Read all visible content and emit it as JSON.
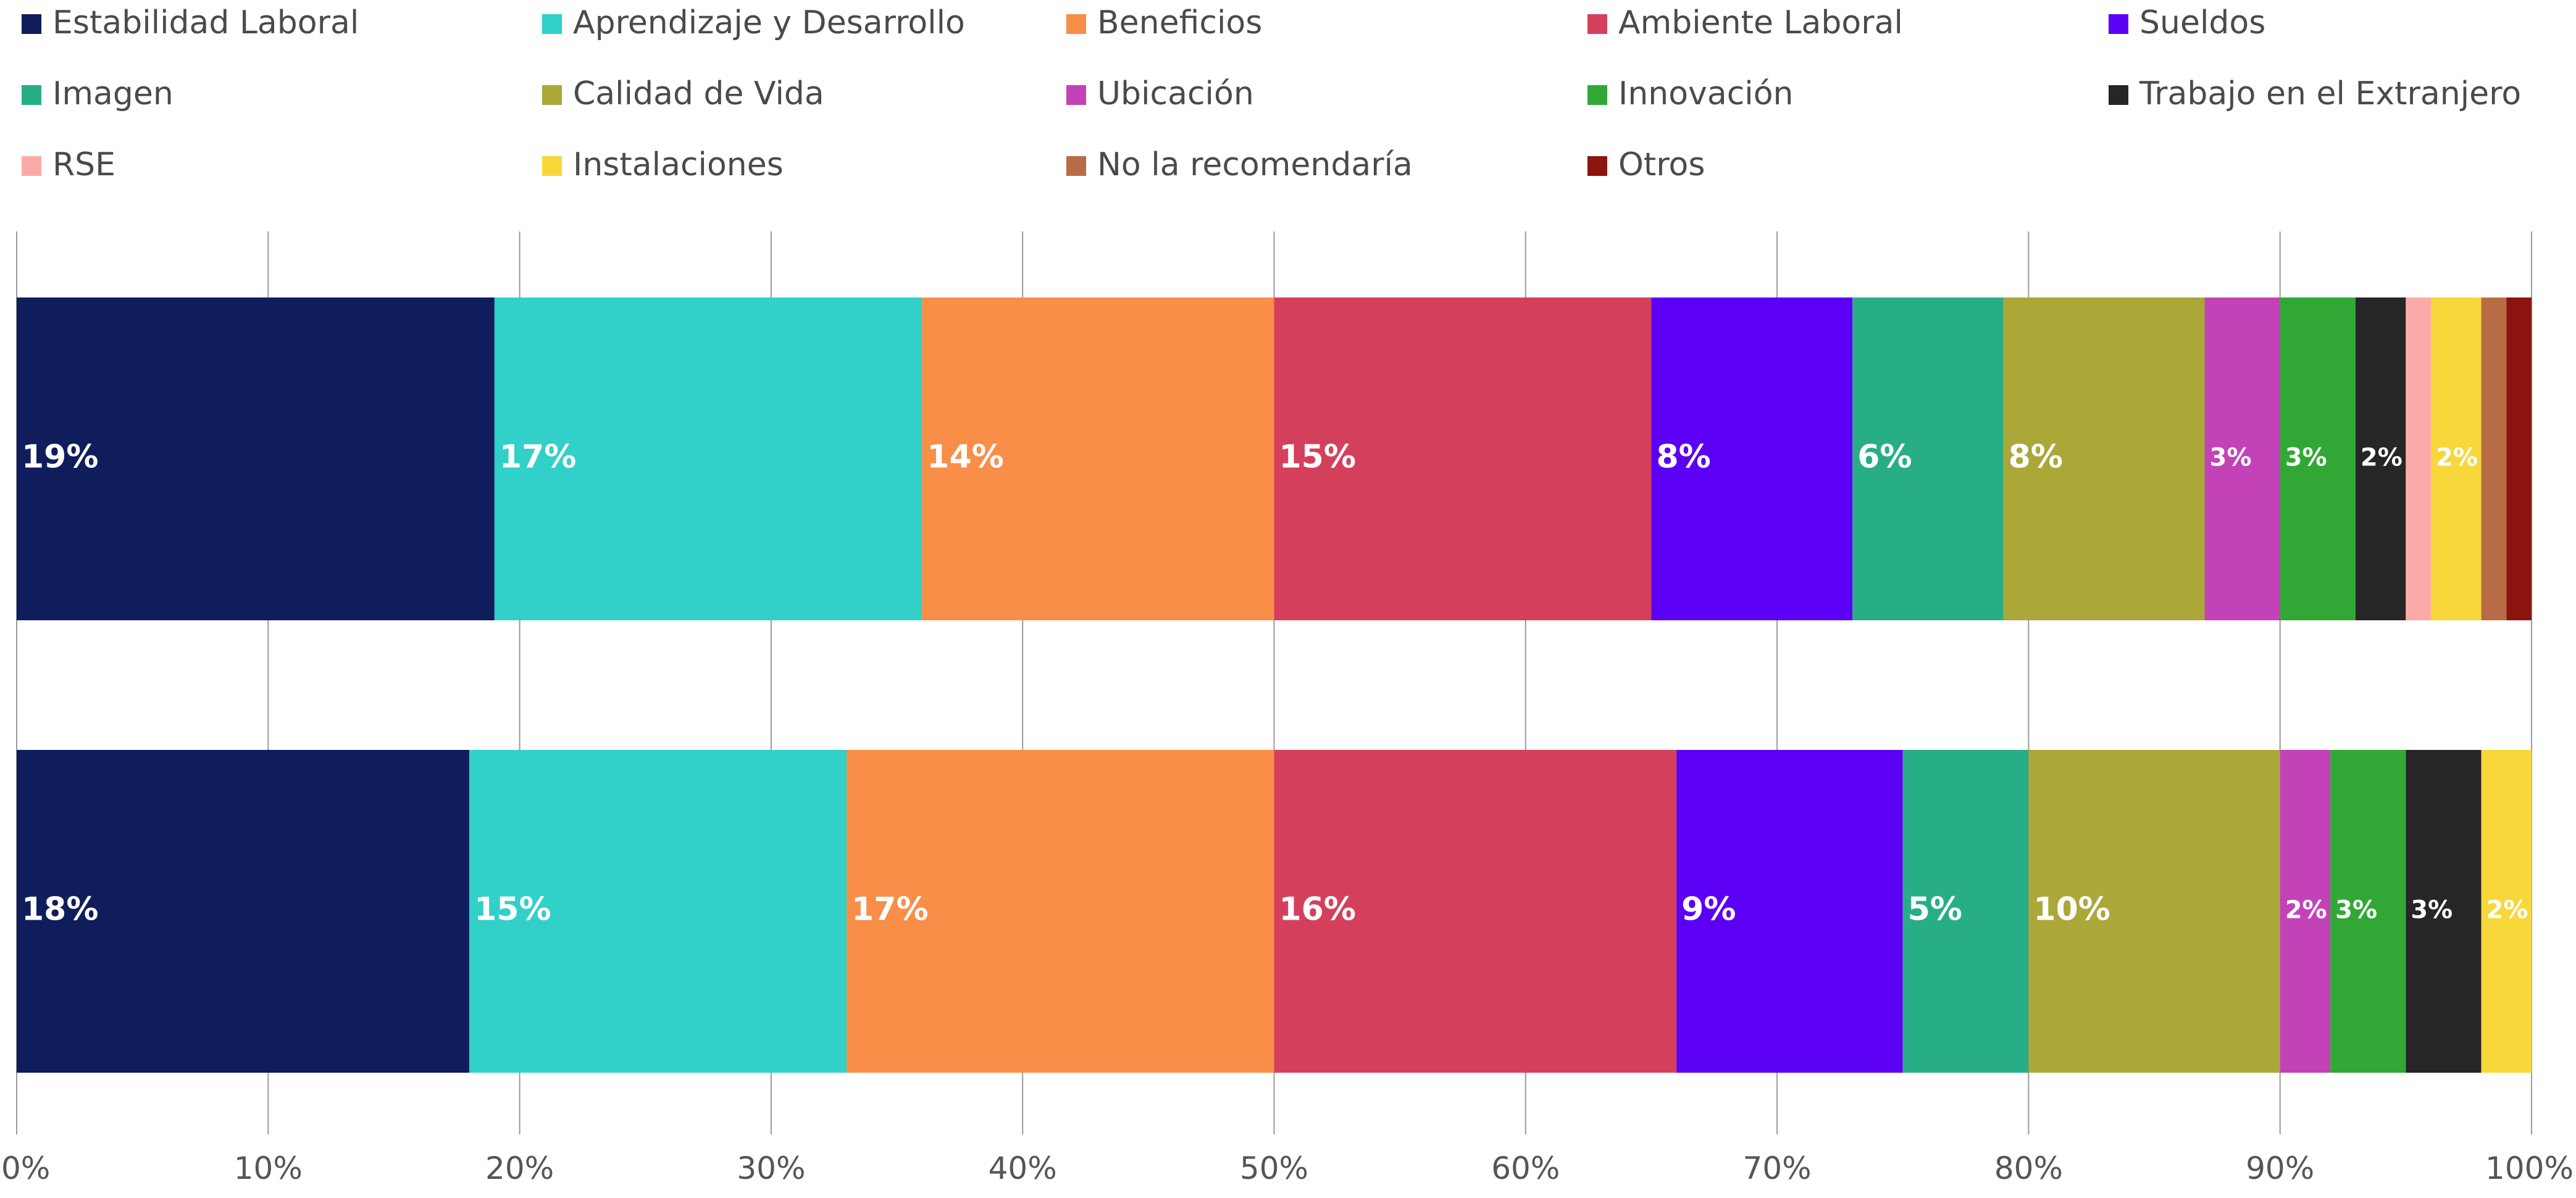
{
  "chart_data": {
    "type": "bar",
    "orientation": "horizontal",
    "stacked": true,
    "percent": true,
    "xlim": [
      0,
      100
    ],
    "xticks": [
      "0%",
      "10%",
      "20%",
      "30%",
      "40%",
      "50%",
      "60%",
      "70%",
      "80%",
      "90%",
      "100%"
    ],
    "grid": "vertical",
    "legend_position": "top",
    "bars": 2,
    "series": [
      {
        "name": "Estabilidad Laboral",
        "color": "#0f1d5c",
        "values": [
          19,
          18
        ],
        "labels": [
          "19%",
          "18%"
        ]
      },
      {
        "name": "Aprendizaje y Desarrollo",
        "color": "#31d0c8",
        "values": [
          17,
          15
        ],
        "labels": [
          "17%",
          "15%"
        ]
      },
      {
        "name": "Beneficios",
        "color": "#f88e48",
        "values": [
          14,
          17
        ],
        "labels": [
          "14%",
          "17%"
        ]
      },
      {
        "name": "Ambiente Laboral",
        "color": "#d4405c",
        "values": [
          15,
          16
        ],
        "labels": [
          "15%",
          "16%"
        ]
      },
      {
        "name": "Sueldos",
        "color": "#5b00f5",
        "values": [
          8,
          9
        ],
        "labels": [
          "8%",
          "9%"
        ]
      },
      {
        "name": "Imagen",
        "color": "#28ae86",
        "values": [
          6,
          5
        ],
        "labels": [
          "6%",
          "5%"
        ]
      },
      {
        "name": "Calidad de Vida",
        "color": "#aba739",
        "values": [
          8,
          10
        ],
        "labels": [
          "8%",
          "10%"
        ]
      },
      {
        "name": "Ubicación",
        "color": "#c442b8",
        "values": [
          3,
          2
        ],
        "labels": [
          "3%",
          "2%"
        ]
      },
      {
        "name": "Innovación",
        "color": "#31a836",
        "values": [
          3,
          3
        ],
        "labels": [
          "3%",
          "3%"
        ]
      },
      {
        "name": "Trabajo en el Extranjero",
        "color": "#262626",
        "values": [
          2,
          3
        ],
        "labels": [
          "2%",
          "3%"
        ]
      },
      {
        "name": "RSE",
        "color": "#fcaaa8",
        "values": [
          1,
          0
        ],
        "labels": [
          "",
          ""
        ]
      },
      {
        "name": "Instalaciones",
        "color": "#f7d73a",
        "values": [
          2,
          2
        ],
        "labels": [
          "2%",
          "2%"
        ]
      },
      {
        "name": "No la recomendaría",
        "color": "#b86c45",
        "values": [
          1,
          0
        ],
        "labels": [
          "",
          ""
        ]
      },
      {
        "name": "Otros",
        "color": "#8c140f",
        "values": [
          1,
          0
        ],
        "labels": [
          "",
          ""
        ]
      }
    ]
  }
}
